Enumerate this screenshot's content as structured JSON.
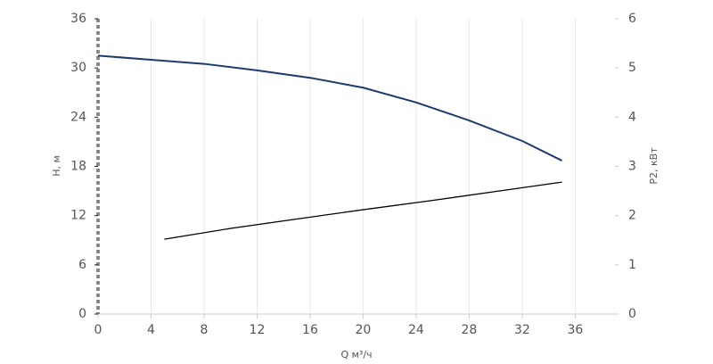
{
  "chart_data": {
    "type": "line",
    "x_label": "Q м³/ч",
    "y_label": "H, м",
    "y2_label": "P2, кВт",
    "xlim": [
      0,
      39
    ],
    "xticks": [
      0,
      4,
      8,
      12,
      16,
      20,
      24,
      28,
      32,
      36
    ],
    "ylim": [
      0,
      36
    ],
    "yticks": [
      0,
      6,
      12,
      18,
      24,
      30,
      36
    ],
    "y2lim": [
      0,
      6
    ],
    "y2ticks": [
      0,
      1,
      2,
      3,
      4,
      5,
      6
    ],
    "grid": true,
    "series": [
      {
        "color": "#1f3a6e",
        "x": [
          0,
          4,
          8,
          12,
          16,
          20,
          24,
          28,
          32,
          35
        ],
        "values": [
          31.5,
          31.0,
          30.5,
          29.7,
          28.8,
          27.6,
          25.8,
          23.6,
          21.1,
          18.7
        ]
      },
      {
        "color": "#000000",
        "axis": "y2",
        "x": [
          5,
          10,
          15,
          20,
          25,
          30,
          35
        ],
        "values": [
          1.52,
          1.74,
          1.93,
          2.12,
          2.3,
          2.49,
          2.68
        ]
      }
    ]
  }
}
